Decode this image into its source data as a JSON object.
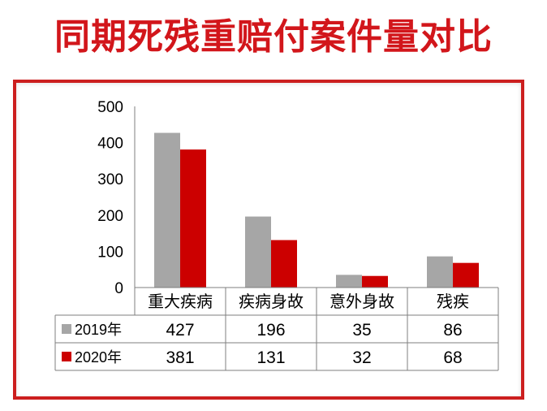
{
  "title": "同期死残重赔付案件量对比",
  "colors": {
    "title": "#d2161b",
    "frame": "#cc1f1f",
    "series_2019": "#a6a6a6",
    "series_2020": "#cc0000",
    "axis": "#7f7f7f",
    "table_lines": "#7f7f7f"
  },
  "chart_data": {
    "type": "bar",
    "title": "",
    "xlabel": "",
    "ylabel": "",
    "ylim": [
      0,
      500
    ],
    "yticks": [
      0,
      100,
      200,
      300,
      400,
      500
    ],
    "grid": false,
    "legend": "data-table",
    "categories": [
      "重大疾病",
      "疾病身故",
      "意外身故",
      "残疾"
    ],
    "series": [
      {
        "name": "2019年",
        "values": [
          427,
          196,
          35,
          86
        ]
      },
      {
        "name": "2020年",
        "values": [
          381,
          131,
          32,
          68
        ]
      }
    ]
  }
}
